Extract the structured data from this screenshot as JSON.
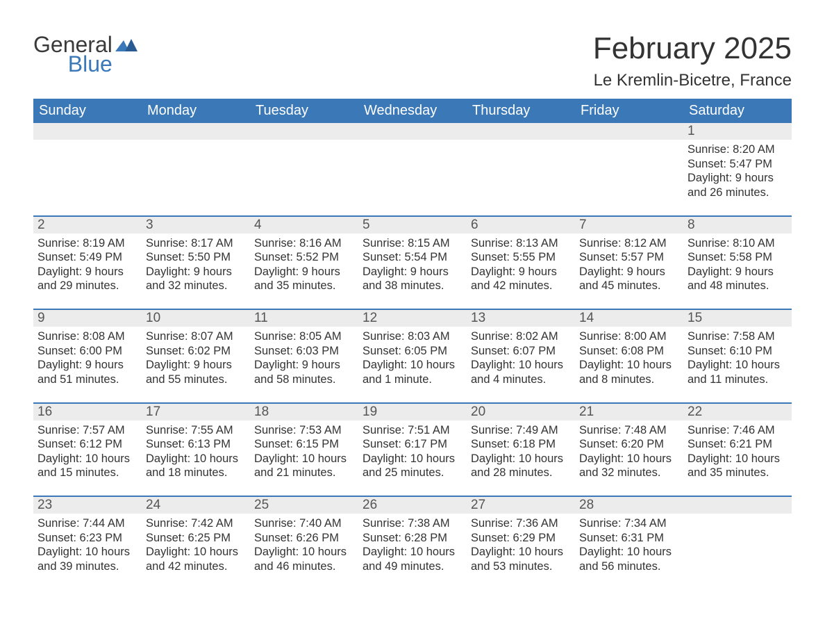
{
  "brand": {
    "word1": "General",
    "word2": "Blue"
  },
  "title": "February 2025",
  "location": "Le Kremlin-Bicetre, France",
  "colors": {
    "header_bg": "#3b78b8",
    "header_text": "#ffffff",
    "daynum_bg": "#ececec",
    "row_border": "#3b78b8",
    "body_text": "#333333",
    "page_bg": "#ffffff",
    "logo_dark": "#3a3a3a",
    "logo_blue": "#3b78b8"
  },
  "typography": {
    "title_fontsize": 44,
    "location_fontsize": 24,
    "dayheader_fontsize": 20,
    "daynum_fontsize": 19,
    "cell_fontsize": 16.5
  },
  "calendar": {
    "type": "table",
    "columns": [
      "Sunday",
      "Monday",
      "Tuesday",
      "Wednesday",
      "Thursday",
      "Friday",
      "Saturday"
    ],
    "weeks": [
      [
        null,
        null,
        null,
        null,
        null,
        null,
        {
          "n": "1",
          "sunrise": "8:20 AM",
          "sunset": "5:47 PM",
          "daylight": "9 hours and 26 minutes."
        }
      ],
      [
        {
          "n": "2",
          "sunrise": "8:19 AM",
          "sunset": "5:49 PM",
          "daylight": "9 hours and 29 minutes."
        },
        {
          "n": "3",
          "sunrise": "8:17 AM",
          "sunset": "5:50 PM",
          "daylight": "9 hours and 32 minutes."
        },
        {
          "n": "4",
          "sunrise": "8:16 AM",
          "sunset": "5:52 PM",
          "daylight": "9 hours and 35 minutes."
        },
        {
          "n": "5",
          "sunrise": "8:15 AM",
          "sunset": "5:54 PM",
          "daylight": "9 hours and 38 minutes."
        },
        {
          "n": "6",
          "sunrise": "8:13 AM",
          "sunset": "5:55 PM",
          "daylight": "9 hours and 42 minutes."
        },
        {
          "n": "7",
          "sunrise": "8:12 AM",
          "sunset": "5:57 PM",
          "daylight": "9 hours and 45 minutes."
        },
        {
          "n": "8",
          "sunrise": "8:10 AM",
          "sunset": "5:58 PM",
          "daylight": "9 hours and 48 minutes."
        }
      ],
      [
        {
          "n": "9",
          "sunrise": "8:08 AM",
          "sunset": "6:00 PM",
          "daylight": "9 hours and 51 minutes."
        },
        {
          "n": "10",
          "sunrise": "8:07 AM",
          "sunset": "6:02 PM",
          "daylight": "9 hours and 55 minutes."
        },
        {
          "n": "11",
          "sunrise": "8:05 AM",
          "sunset": "6:03 PM",
          "daylight": "9 hours and 58 minutes."
        },
        {
          "n": "12",
          "sunrise": "8:03 AM",
          "sunset": "6:05 PM",
          "daylight": "10 hours and 1 minute."
        },
        {
          "n": "13",
          "sunrise": "8:02 AM",
          "sunset": "6:07 PM",
          "daylight": "10 hours and 4 minutes."
        },
        {
          "n": "14",
          "sunrise": "8:00 AM",
          "sunset": "6:08 PM",
          "daylight": "10 hours and 8 minutes."
        },
        {
          "n": "15",
          "sunrise": "7:58 AM",
          "sunset": "6:10 PM",
          "daylight": "10 hours and 11 minutes."
        }
      ],
      [
        {
          "n": "16",
          "sunrise": "7:57 AM",
          "sunset": "6:12 PM",
          "daylight": "10 hours and 15 minutes."
        },
        {
          "n": "17",
          "sunrise": "7:55 AM",
          "sunset": "6:13 PM",
          "daylight": "10 hours and 18 minutes."
        },
        {
          "n": "18",
          "sunrise": "7:53 AM",
          "sunset": "6:15 PM",
          "daylight": "10 hours and 21 minutes."
        },
        {
          "n": "19",
          "sunrise": "7:51 AM",
          "sunset": "6:17 PM",
          "daylight": "10 hours and 25 minutes."
        },
        {
          "n": "20",
          "sunrise": "7:49 AM",
          "sunset": "6:18 PM",
          "daylight": "10 hours and 28 minutes."
        },
        {
          "n": "21",
          "sunrise": "7:48 AM",
          "sunset": "6:20 PM",
          "daylight": "10 hours and 32 minutes."
        },
        {
          "n": "22",
          "sunrise": "7:46 AM",
          "sunset": "6:21 PM",
          "daylight": "10 hours and 35 minutes."
        }
      ],
      [
        {
          "n": "23",
          "sunrise": "7:44 AM",
          "sunset": "6:23 PM",
          "daylight": "10 hours and 39 minutes."
        },
        {
          "n": "24",
          "sunrise": "7:42 AM",
          "sunset": "6:25 PM",
          "daylight": "10 hours and 42 minutes."
        },
        {
          "n": "25",
          "sunrise": "7:40 AM",
          "sunset": "6:26 PM",
          "daylight": "10 hours and 46 minutes."
        },
        {
          "n": "26",
          "sunrise": "7:38 AM",
          "sunset": "6:28 PM",
          "daylight": "10 hours and 49 minutes."
        },
        {
          "n": "27",
          "sunrise": "7:36 AM",
          "sunset": "6:29 PM",
          "daylight": "10 hours and 53 minutes."
        },
        {
          "n": "28",
          "sunrise": "7:34 AM",
          "sunset": "6:31 PM",
          "daylight": "10 hours and 56 minutes."
        },
        null
      ]
    ],
    "labels": {
      "sunrise": "Sunrise: ",
      "sunset": "Sunset: ",
      "daylight": "Daylight: "
    }
  }
}
